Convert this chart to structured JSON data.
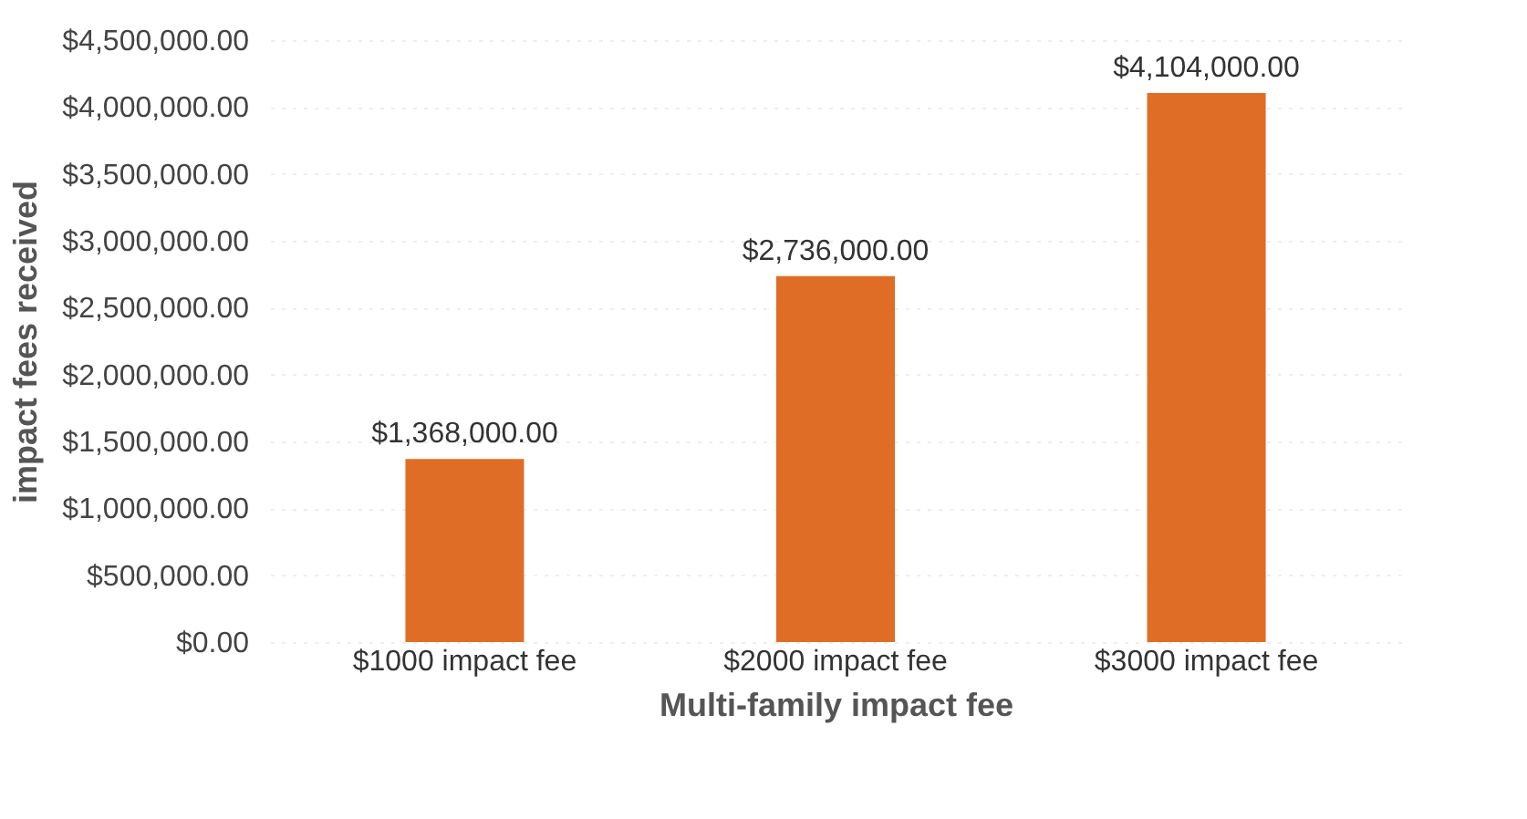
{
  "chart_data": {
    "type": "bar",
    "xlabel": "Multi-family impact fee",
    "ylabel": "impact fees  received",
    "categories": [
      "$1000 impact fee",
      "$2000 impact fee",
      "$3000 impact fee"
    ],
    "values": [
      1368000,
      2736000,
      4104000
    ],
    "color": "#e06d25",
    "value_labels": [
      "$1,368,000.00",
      "$2,736,000.00",
      "$4,104,000.00"
    ],
    "ylim": [
      0,
      4500000
    ],
    "yticks": [
      {
        "value": 0,
        "label": "$0.00"
      },
      {
        "value": 500000,
        "label": "$500,000.00"
      },
      {
        "value": 1000000,
        "label": "$1,000,000.00"
      },
      {
        "value": 1500000,
        "label": "$1,500,000.00"
      },
      {
        "value": 2000000,
        "label": "$2,000,000.00"
      },
      {
        "value": 2500000,
        "label": "$2,500,000.00"
      },
      {
        "value": 3000000,
        "label": "$3,000,000.00"
      },
      {
        "value": 3500000,
        "label": "$3,500,000.00"
      },
      {
        "value": 4000000,
        "label": "$4,000,000.00"
      },
      {
        "value": 4500000,
        "label": "$4,500,000.00"
      }
    ],
    "grid": "y"
  }
}
